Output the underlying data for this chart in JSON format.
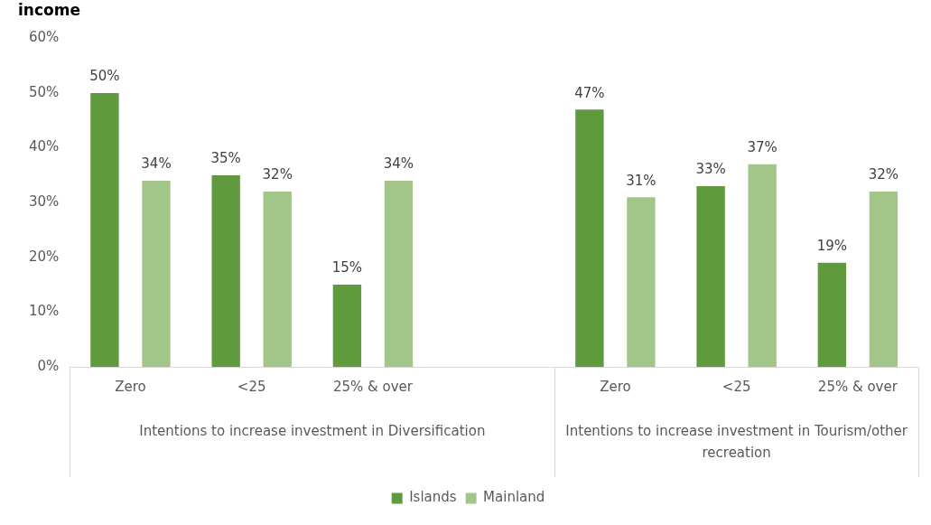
{
  "chart_data": {
    "type": "bar",
    "title": "income",
    "categories": [
      "Zero",
      "<25",
      "25% & over",
      null,
      "Zero",
      "<25",
      "25% & over"
    ],
    "series": [
      {
        "name": "Islands",
        "color": "#5f9a3c",
        "values": [
          50,
          35,
          15,
          null,
          47,
          33,
          19
        ],
        "value_labels": [
          "50%",
          "35%",
          "15%",
          null,
          "47%",
          "33%",
          "19%"
        ]
      },
      {
        "name": "Mainland",
        "color": "#a2c68a",
        "values": [
          34,
          32,
          34,
          null,
          31,
          37,
          32
        ],
        "value_labels": [
          "34%",
          "32%",
          "34%",
          null,
          "31%",
          "37%",
          "32%"
        ]
      }
    ],
    "ylim": [
      0,
      60
    ],
    "yticks": [
      {
        "value": 0,
        "label": "0%"
      },
      {
        "value": 10,
        "label": "10%"
      },
      {
        "value": 20,
        "label": "20%"
      },
      {
        "value": 30,
        "label": "30%"
      },
      {
        "value": 40,
        "label": "40%"
      },
      {
        "value": 50,
        "label": "50%"
      },
      {
        "value": 60,
        "label": "60%"
      }
    ],
    "annotations": [
      "Intentions to increase investment in Diversification",
      "Intentions to increase investment in Tourism/other recreation"
    ],
    "grid": false,
    "legend": "bottom"
  }
}
